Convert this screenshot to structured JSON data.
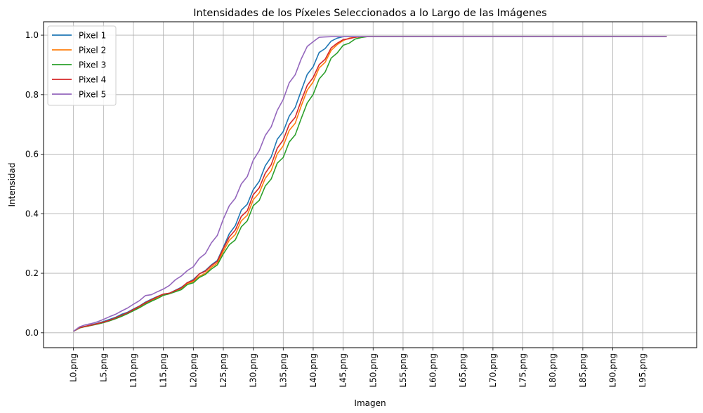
{
  "chart_data": {
    "type": "line",
    "title": "Intensidades de los Píxeles Seleccionados a lo Largo de las Imágenes",
    "xlabel": "Imagen",
    "ylabel": "Intensidad",
    "x": [
      0,
      1,
      2,
      3,
      4,
      5,
      6,
      7,
      8,
      9,
      10,
      11,
      12,
      13,
      14,
      15,
      16,
      17,
      18,
      19,
      20,
      21,
      22,
      23,
      24,
      25,
      26,
      27,
      28,
      29,
      30,
      31,
      32,
      33,
      34,
      35,
      36,
      37,
      38,
      39,
      40,
      41,
      42,
      43,
      44,
      45,
      46,
      47,
      48,
      49,
      50,
      51,
      52,
      53,
      54,
      55,
      56,
      57,
      58,
      59,
      60,
      61,
      62,
      63,
      64,
      65,
      66,
      67,
      68,
      69,
      70,
      71,
      72,
      73,
      74,
      75,
      76,
      77,
      78,
      79,
      80,
      81,
      82,
      83,
      84,
      85,
      86,
      87,
      88,
      89,
      90,
      91,
      92,
      93,
      94,
      95,
      96,
      97,
      98,
      99
    ],
    "xticks": [
      0,
      5,
      10,
      15,
      20,
      25,
      30,
      35,
      40,
      45,
      50,
      55,
      60,
      65,
      70,
      75,
      80,
      85,
      90,
      95
    ],
    "xticklabels": [
      "L0.png",
      "L5.png",
      "L10.png",
      "L15.png",
      "L20.png",
      "L25.png",
      "L30.png",
      "L35.png",
      "L40.png",
      "L45.png",
      "L50.png",
      "L55.png",
      "L60.png",
      "L65.png",
      "L70.png",
      "L75.png",
      "L80.png",
      "L85.png",
      "L90.png",
      "L95.png"
    ],
    "yticks": [
      0.0,
      0.2,
      0.4,
      0.6,
      0.8,
      1.0
    ],
    "yticklabels": [
      "0.0",
      "0.2",
      "0.4",
      "0.6",
      "0.8",
      "1.0"
    ],
    "xlim": [
      -5,
      104
    ],
    "ylim": [
      -0.05,
      1.045
    ],
    "grid": true,
    "legend_position": "upper left",
    "series": [
      {
        "name": "Pixel 1",
        "color": "#1f77b4",
        "values": [
          0.005,
          0.017,
          0.022,
          0.027,
          0.032,
          0.038,
          0.045,
          0.052,
          0.062,
          0.069,
          0.08,
          0.09,
          0.103,
          0.113,
          0.122,
          0.13,
          0.133,
          0.143,
          0.153,
          0.168,
          0.179,
          0.198,
          0.209,
          0.228,
          0.243,
          0.287,
          0.333,
          0.36,
          0.412,
          0.432,
          0.481,
          0.509,
          0.561,
          0.591,
          0.65,
          0.676,
          0.728,
          0.757,
          0.813,
          0.868,
          0.894,
          0.942,
          0.955,
          0.98,
          0.99,
          0.995,
          0.995,
          0.995,
          0.995,
          0.995,
          0.995,
          0.995,
          0.995,
          0.995,
          0.995,
          0.995,
          0.995,
          0.995,
          0.995,
          0.995,
          0.995,
          0.995,
          0.995,
          0.995,
          0.995,
          0.995,
          0.995,
          0.995,
          0.995,
          0.995,
          0.995,
          0.995,
          0.995,
          0.995,
          0.995,
          0.995,
          0.995,
          0.995,
          0.995,
          0.995,
          0.995,
          0.995,
          0.995,
          0.995,
          0.995,
          0.995,
          0.995,
          0.995,
          0.995,
          0.995,
          0.995,
          0.995,
          0.995,
          0.995,
          0.995,
          0.995,
          0.995,
          0.995,
          0.995,
          0.995
        ]
      },
      {
        "name": "Pixel 2",
        "color": "#ff7f0e",
        "values": [
          0.005,
          0.016,
          0.021,
          0.025,
          0.03,
          0.035,
          0.041,
          0.048,
          0.057,
          0.066,
          0.076,
          0.086,
          0.099,
          0.109,
          0.119,
          0.129,
          0.132,
          0.141,
          0.149,
          0.165,
          0.172,
          0.19,
          0.2,
          0.22,
          0.234,
          0.274,
          0.311,
          0.33,
          0.376,
          0.395,
          0.447,
          0.47,
          0.519,
          0.545,
          0.601,
          0.628,
          0.68,
          0.704,
          0.762,
          0.815,
          0.843,
          0.89,
          0.909,
          0.949,
          0.968,
          0.982,
          0.99,
          0.993,
          0.995,
          0.995,
          0.995,
          0.995,
          0.995,
          0.995,
          0.995,
          0.995,
          0.995,
          0.995,
          0.995,
          0.995,
          0.995,
          0.995,
          0.995,
          0.995,
          0.995,
          0.995,
          0.995,
          0.995,
          0.995,
          0.995,
          0.995,
          0.995,
          0.995,
          0.995,
          0.995,
          0.995,
          0.995,
          0.995,
          0.995,
          0.995,
          0.995,
          0.995,
          0.995,
          0.995,
          0.995,
          0.995,
          0.995,
          0.995,
          0.995,
          0.995,
          0.995,
          0.995,
          0.995,
          0.995,
          0.995,
          0.995,
          0.995,
          0.995,
          0.995,
          0.995
        ]
      },
      {
        "name": "Pixel 3",
        "color": "#2ca02c",
        "values": [
          0.005,
          0.016,
          0.021,
          0.025,
          0.029,
          0.034,
          0.04,
          0.047,
          0.055,
          0.064,
          0.074,
          0.084,
          0.096,
          0.106,
          0.115,
          0.126,
          0.131,
          0.138,
          0.145,
          0.162,
          0.168,
          0.186,
          0.196,
          0.214,
          0.228,
          0.265,
          0.296,
          0.312,
          0.356,
          0.376,
          0.427,
          0.445,
          0.493,
          0.517,
          0.57,
          0.589,
          0.641,
          0.665,
          0.72,
          0.772,
          0.801,
          0.853,
          0.876,
          0.923,
          0.94,
          0.966,
          0.973,
          0.987,
          0.992,
          0.995,
          0.995,
          0.995,
          0.995,
          0.995,
          0.995,
          0.995,
          0.995,
          0.995,
          0.995,
          0.995,
          0.995,
          0.995,
          0.995,
          0.995,
          0.995,
          0.995,
          0.995,
          0.995,
          0.995,
          0.995,
          0.995,
          0.995,
          0.995,
          0.995,
          0.995,
          0.995,
          0.995,
          0.995,
          0.995,
          0.995,
          0.995,
          0.995,
          0.995,
          0.995,
          0.995,
          0.995,
          0.995,
          0.995,
          0.995,
          0.995,
          0.995,
          0.995,
          0.995,
          0.995,
          0.995,
          0.995,
          0.995,
          0.995,
          0.995,
          0.995
        ]
      },
      {
        "name": "Pixel 4",
        "color": "#d62728",
        "values": [
          0.005,
          0.017,
          0.022,
          0.026,
          0.031,
          0.036,
          0.042,
          0.05,
          0.059,
          0.067,
          0.078,
          0.089,
          0.101,
          0.111,
          0.121,
          0.13,
          0.133,
          0.142,
          0.151,
          0.169,
          0.176,
          0.198,
          0.207,
          0.226,
          0.24,
          0.283,
          0.322,
          0.345,
          0.391,
          0.41,
          0.464,
          0.487,
          0.536,
          0.565,
          0.62,
          0.648,
          0.7,
          0.724,
          0.78,
          0.831,
          0.858,
          0.901,
          0.919,
          0.957,
          0.973,
          0.985,
          0.988,
          0.993,
          0.995,
          0.995,
          0.995,
          0.995,
          0.995,
          0.995,
          0.995,
          0.995,
          0.995,
          0.995,
          0.995,
          0.995,
          0.995,
          0.995,
          0.995,
          0.995,
          0.995,
          0.995,
          0.995,
          0.995,
          0.995,
          0.995,
          0.995,
          0.995,
          0.995,
          0.995,
          0.995,
          0.995,
          0.995,
          0.995,
          0.995,
          0.995,
          0.995,
          0.995,
          0.995,
          0.995,
          0.995,
          0.995,
          0.995,
          0.995,
          0.995,
          0.995,
          0.995,
          0.995,
          0.995,
          0.995,
          0.995,
          0.995,
          0.995,
          0.995,
          0.995,
          0.995
        ]
      },
      {
        "name": "Pixel 5",
        "color": "#9467bd",
        "values": [
          0.005,
          0.02,
          0.027,
          0.031,
          0.037,
          0.045,
          0.054,
          0.062,
          0.073,
          0.083,
          0.096,
          0.108,
          0.125,
          0.128,
          0.138,
          0.147,
          0.159,
          0.178,
          0.191,
          0.209,
          0.222,
          0.25,
          0.266,
          0.302,
          0.327,
          0.382,
          0.427,
          0.452,
          0.5,
          0.525,
          0.58,
          0.612,
          0.663,
          0.692,
          0.747,
          0.784,
          0.84,
          0.867,
          0.92,
          0.962,
          0.978,
          0.993,
          0.994,
          0.995,
          0.995,
          0.995,
          0.995,
          0.995,
          0.995,
          0.995,
          0.995,
          0.995,
          0.995,
          0.995,
          0.995,
          0.995,
          0.995,
          0.995,
          0.995,
          0.995,
          0.995,
          0.995,
          0.995,
          0.995,
          0.995,
          0.995,
          0.995,
          0.995,
          0.995,
          0.995,
          0.995,
          0.995,
          0.995,
          0.995,
          0.995,
          0.995,
          0.995,
          0.995,
          0.995,
          0.995,
          0.995,
          0.995,
          0.995,
          0.995,
          0.995,
          0.995,
          0.995,
          0.995,
          0.995,
          0.995,
          0.995,
          0.995,
          0.995,
          0.995,
          0.995,
          0.995,
          0.995,
          0.995,
          0.995,
          0.995
        ]
      }
    ]
  }
}
